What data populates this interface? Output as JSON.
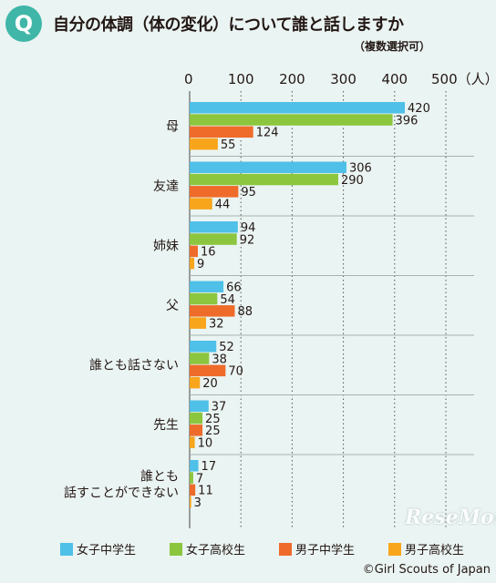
{
  "header": {
    "badge": "Q",
    "title": "自分の体調（体の変化）について誰と話しますか",
    "subtitle": "（複数選択可）"
  },
  "chart_data": {
    "type": "bar",
    "orientation": "horizontal",
    "categories": [
      "母",
      "友達",
      "姉妹",
      "父",
      "誰とも話さない",
      "先生",
      "誰とも話すことができない"
    ],
    "category_lines": [
      [
        "母"
      ],
      [
        "友達"
      ],
      [
        "姉妹"
      ],
      [
        "父"
      ],
      [
        "誰とも話さない"
      ],
      [
        "先生"
      ],
      [
        "誰とも",
        "話すことができない"
      ]
    ],
    "series": [
      {
        "name": "女子中学生",
        "color": "#4fc0e8",
        "values": [
          420,
          306,
          94,
          66,
          52,
          37,
          17
        ]
      },
      {
        "name": "女子高校生",
        "color": "#8cc63f",
        "values": [
          396,
          290,
          92,
          54,
          38,
          25,
          7
        ]
      },
      {
        "name": "男子中学生",
        "color": "#ef6b2a",
        "values": [
          124,
          95,
          16,
          88,
          70,
          25,
          11
        ]
      },
      {
        "name": "男子高校生",
        "color": "#f8a51b",
        "values": [
          55,
          44,
          9,
          32,
          20,
          10,
          3
        ]
      }
    ],
    "xlim": [
      0,
      500
    ],
    "ticks": [
      "0",
      "100",
      "200",
      "300",
      "400",
      "500（人）"
    ],
    "grid": "dotted-vertical",
    "legend_position": "bottom"
  },
  "watermark": "ReseMom",
  "copyright": "©Girl Scouts of Japan"
}
